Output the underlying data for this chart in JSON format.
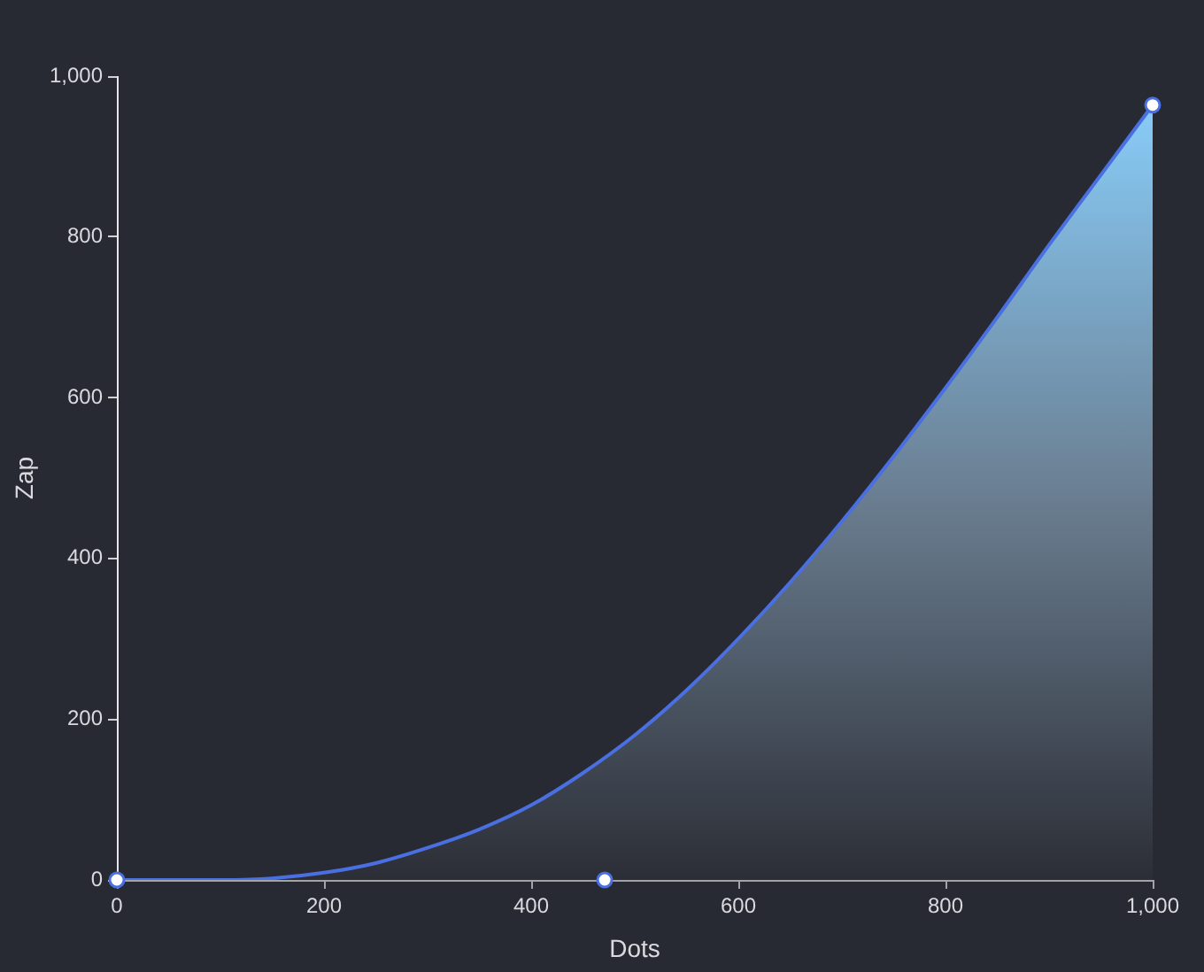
{
  "chart_data": {
    "type": "area",
    "xlabel": "Dots",
    "ylabel": "Zap",
    "xlim": [
      0,
      1000
    ],
    "ylim": [
      0,
      1000
    ],
    "xticks": [
      0,
      200,
      400,
      600,
      800,
      {
        "value": 1000,
        "label": "1,000"
      }
    ],
    "yticks": [
      0,
      200,
      400,
      600,
      800,
      {
        "value": 1000,
        "label": "1,000"
      }
    ],
    "series": [
      {
        "color": "#4a6fe0",
        "x": [
          0,
          50,
          100,
          150,
          200,
          250,
          300,
          350,
          400,
          450,
          500,
          550,
          600,
          650,
          700,
          750,
          800,
          850,
          900,
          950,
          1000
        ],
        "values": [
          0,
          0,
          0,
          2,
          9,
          21,
          40,
          63,
          93,
          133,
          180,
          236,
          300,
          370,
          446,
          527,
          612,
          700,
          790,
          877,
          964
        ]
      },
      {
        "type": "scatter",
        "color": "#ffffff",
        "marker": "circle",
        "x": [
          0,
          471,
          1000
        ],
        "values": [
          0,
          0,
          964
        ]
      }
    ]
  }
}
